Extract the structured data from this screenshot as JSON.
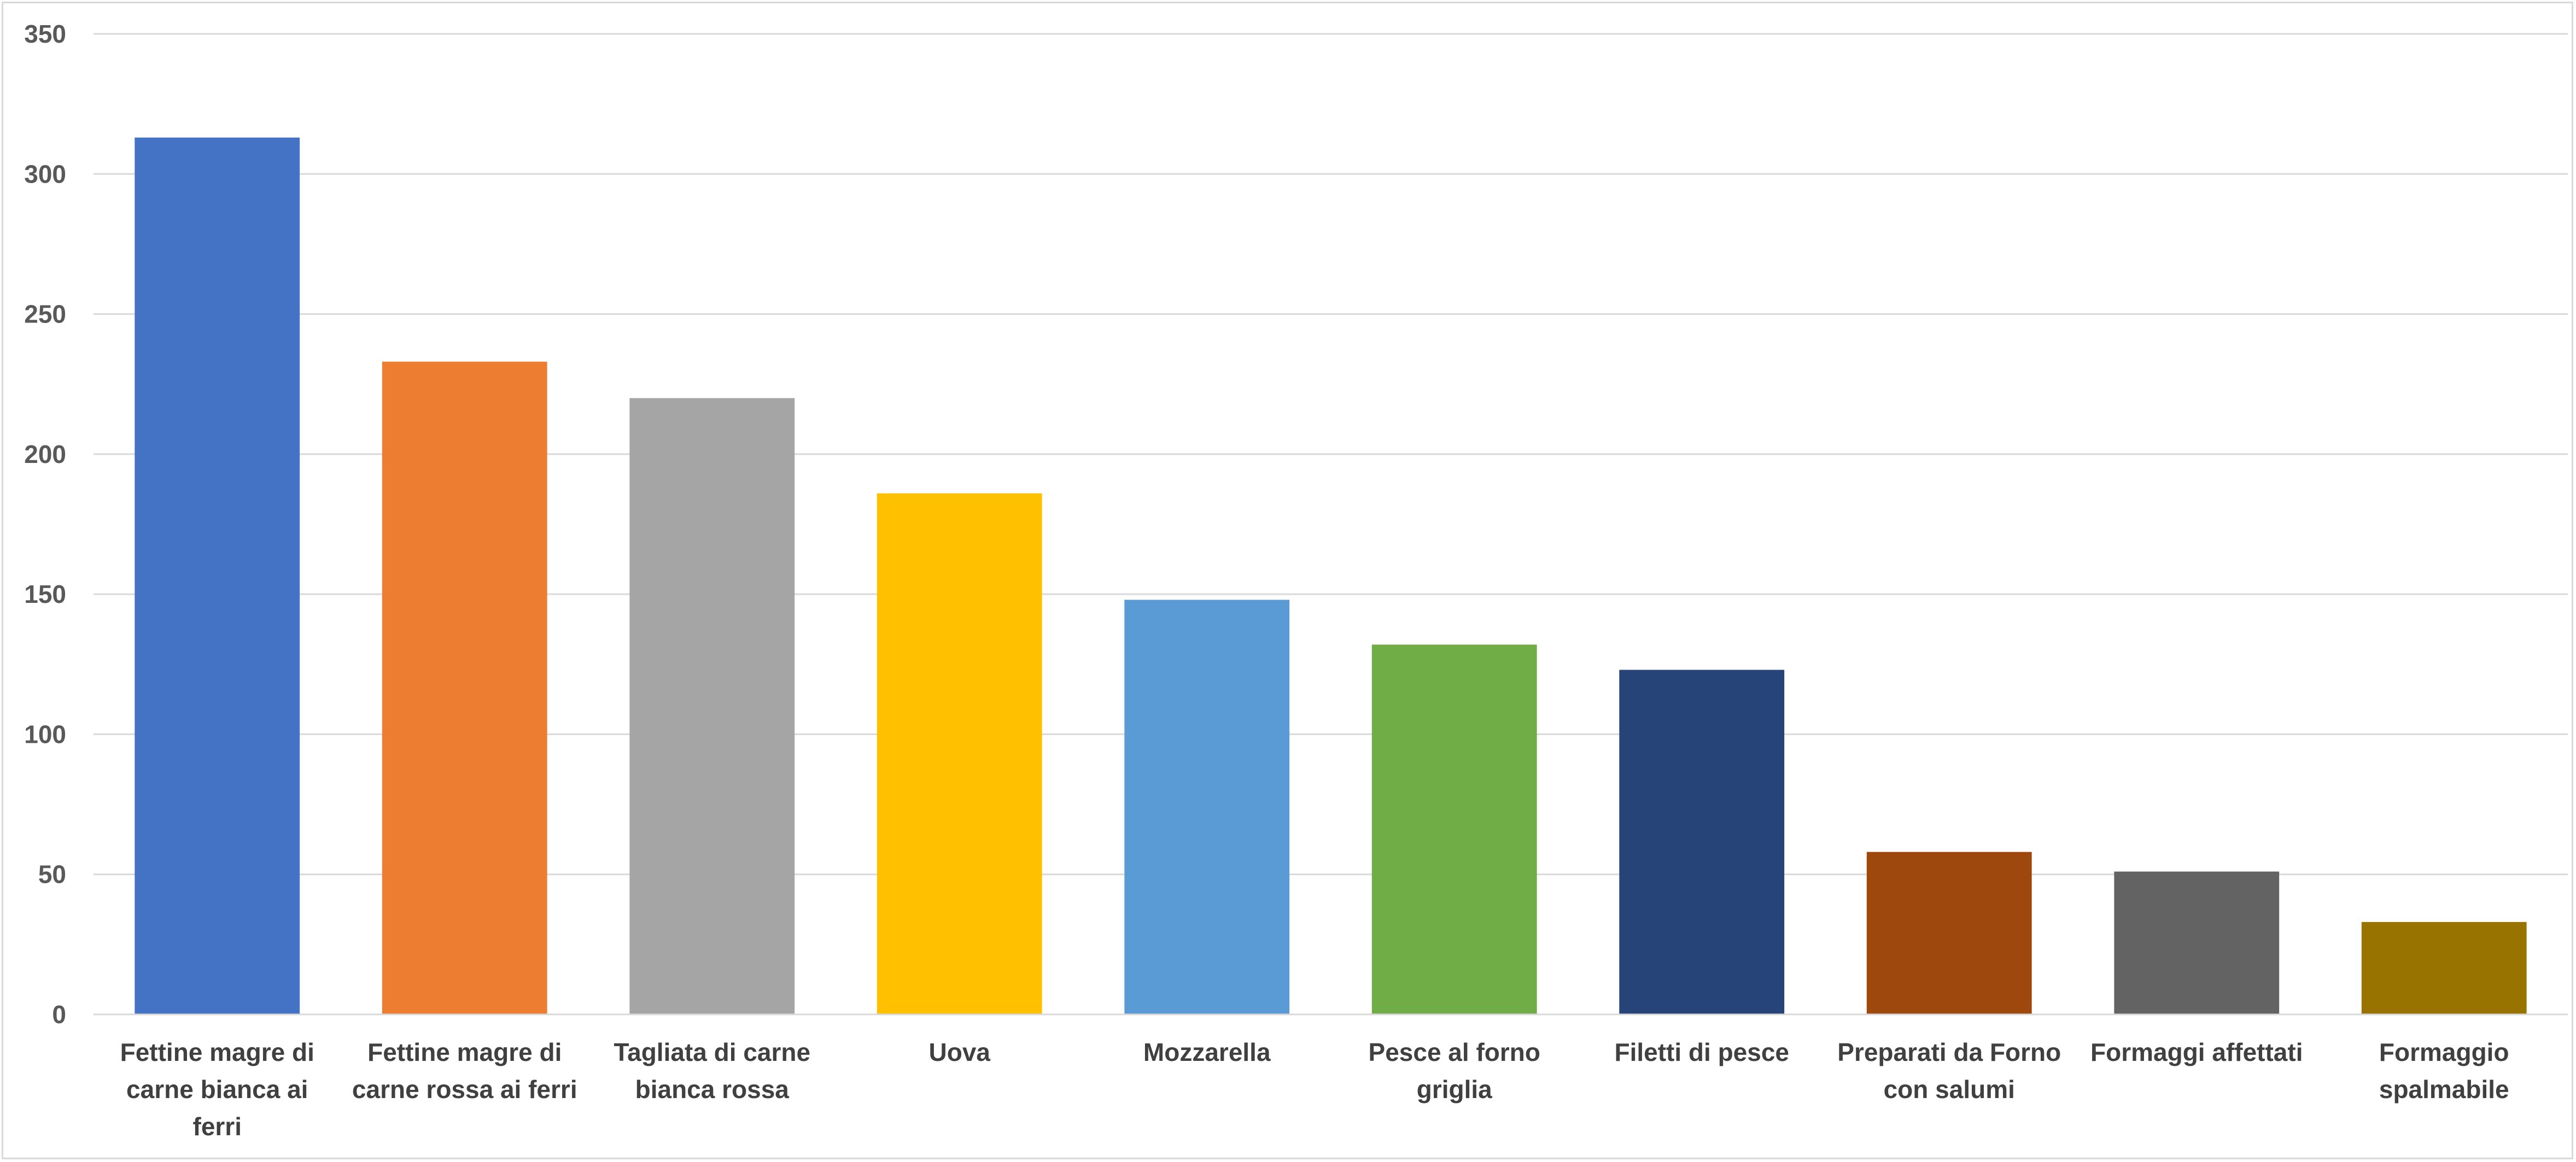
{
  "chart_data": {
    "type": "bar",
    "title": "",
    "xlabel": "",
    "ylabel": "",
    "categories": [
      "Fettine magre di carne bianca ai ferri",
      "Fettine magre di carne rossa ai ferri",
      "Tagliata di carne bianca rossa",
      "Uova",
      "Mozzarella",
      "Pesce al forno griglia",
      "Filetti di pesce",
      "Preparati da Forno con salumi",
      "Formaggi affettati",
      "Formaggio spalmabile"
    ],
    "category_lines": [
      [
        "Fettine magre di",
        "carne bianca ai",
        "ferri"
      ],
      [
        "Fettine magre di",
        "carne rossa ai ferri"
      ],
      [
        "Tagliata di carne",
        "bianca rossa"
      ],
      [
        "Uova"
      ],
      [
        "Mozzarella"
      ],
      [
        "Pesce al forno",
        "griglia"
      ],
      [
        "Filetti di pesce"
      ],
      [
        "Preparati da Forno",
        "con salumi"
      ],
      [
        "Formaggi affettati"
      ],
      [
        "Formaggio",
        "spalmabile"
      ]
    ],
    "values": [
      313,
      233,
      220,
      186,
      148,
      132,
      123,
      58,
      51,
      33
    ],
    "colors": [
      "#4472c4",
      "#ed7d31",
      "#a5a5a5",
      "#ffc000",
      "#5b9bd5",
      "#70ad47",
      "#264478",
      "#9e480e",
      "#636363",
      "#997300"
    ],
    "ylim": [
      0,
      350
    ],
    "yticks": [
      0,
      50,
      100,
      150,
      200,
      250,
      300,
      350
    ],
    "grid": true,
    "legend": "none"
  }
}
